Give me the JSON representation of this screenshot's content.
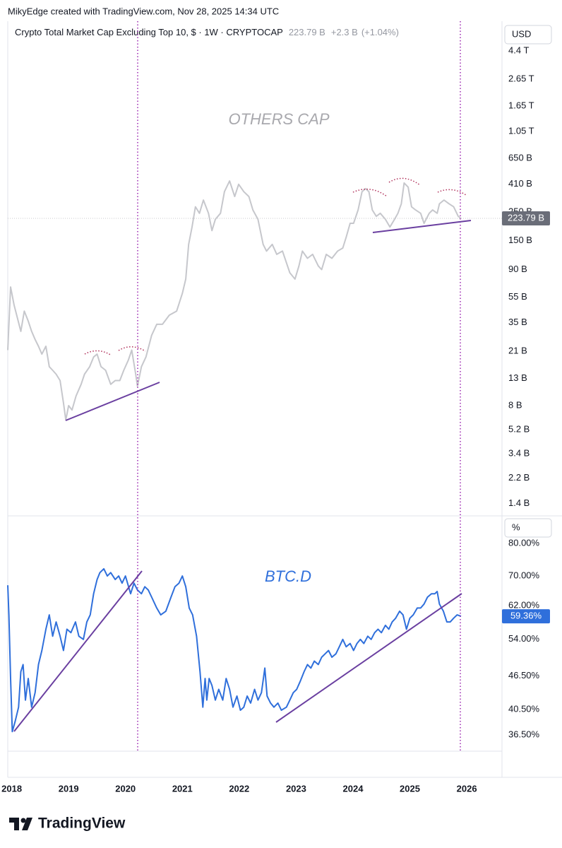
{
  "attribution": "MikyEdge created with TradingView.com, Nov 28, 2025 14:34 UTC",
  "footer_logo": "TradingView",
  "chart_data": [
    {
      "type": "line",
      "title": "Crypto Total Market Cap Excluding Top 10, $ · 1W · CRYPTOCAP",
      "currency": "USD",
      "annotation": "OTHERS CAP",
      "change": "+2.3 B",
      "change_pct": "(+1.04%)",
      "last_price": {
        "value": 223.79,
        "label": "223.79 B"
      },
      "log_scale": true,
      "color": "#c6c7cc",
      "xlim": [
        2017.93,
        2026.62
      ],
      "ylim": [
        1.17,
        7460
      ],
      "yticks": [
        {
          "value": 1.4,
          "label": "1.4 B"
        },
        {
          "value": 2.2,
          "label": "2.2 B"
        },
        {
          "value": 3.4,
          "label": "3.4 B"
        },
        {
          "value": 5.2,
          "label": "5.2 B"
        },
        {
          "value": 8,
          "label": "8 B"
        },
        {
          "value": 13,
          "label": "13 B"
        },
        {
          "value": 21,
          "label": "21 B"
        },
        {
          "value": 35,
          "label": "35 B"
        },
        {
          "value": 55,
          "label": "55 B"
        },
        {
          "value": 90,
          "label": "90 B"
        },
        {
          "value": 150,
          "label": "150 B"
        },
        {
          "value": 250,
          "label": "250 B"
        },
        {
          "value": 410,
          "label": "410 B"
        },
        {
          "value": 650,
          "label": "650 B"
        },
        {
          "value": 1050,
          "label": "1.05 T"
        },
        {
          "value": 1650,
          "label": "1.65 T"
        },
        {
          "value": 2650,
          "label": "2.65 T"
        },
        {
          "value": 4400,
          "label": "4.4 T"
        }
      ],
      "x": [
        2017.93,
        2017.98,
        2018.04,
        2018.1,
        2018.16,
        2018.22,
        2018.29,
        2018.35,
        2018.41,
        2018.47,
        2018.53,
        2018.6,
        2018.66,
        2018.72,
        2018.78,
        2018.85,
        2018.91,
        2018.95,
        2019.0,
        2019.06,
        2019.13,
        2019.22,
        2019.28,
        2019.37,
        2019.44,
        2019.5,
        2019.57,
        2019.65,
        2019.74,
        2019.82,
        2019.9,
        2019.97,
        2020.05,
        2020.11,
        2020.18,
        2020.21,
        2020.28,
        2020.36,
        2020.46,
        2020.55,
        2020.65,
        2020.77,
        2020.9,
        2021.0,
        2021.06,
        2021.11,
        2021.17,
        2021.23,
        2021.3,
        2021.37,
        2021.46,
        2021.52,
        2021.58,
        2021.67,
        2021.74,
        2021.83,
        2021.92,
        2021.99,
        2022.08,
        2022.17,
        2022.24,
        2022.33,
        2022.42,
        2022.48,
        2022.58,
        2022.66,
        2022.76,
        2022.89,
        2022.98,
        2023.05,
        2023.11,
        2023.2,
        2023.29,
        2023.39,
        2023.45,
        2023.53,
        2023.63,
        2023.73,
        2023.82,
        2023.88,
        2023.95,
        2024.01,
        2024.09,
        2024.16,
        2024.22,
        2024.28,
        2024.34,
        2024.41,
        2024.48,
        2024.57,
        2024.65,
        2024.73,
        2024.79,
        2024.85,
        2024.9,
        2024.97,
        2025.03,
        2025.1,
        2025.19,
        2025.25,
        2025.34,
        2025.4,
        2025.48,
        2025.52,
        2025.6,
        2025.69,
        2025.77,
        2025.85,
        2025.9
      ],
      "values": [
        21.5,
        66,
        48,
        38,
        30,
        43,
        36,
        30,
        26,
        23,
        20,
        23,
        16,
        15,
        14,
        12.5,
        8.4,
        6.2,
        8,
        7.4,
        9.5,
        11.7,
        14,
        16,
        19,
        20,
        16,
        15,
        11.7,
        12.5,
        12.5,
        15,
        18,
        21.5,
        14,
        11.3,
        16,
        19,
        28,
        34,
        34,
        40,
        43,
        59,
        76,
        141,
        192,
        275,
        245,
        310,
        245,
        180,
        220,
        245,
        360,
        435,
        330,
        410,
        360,
        330,
        260,
        220,
        141,
        125,
        141,
        118,
        125,
        85,
        76,
        96,
        125,
        110,
        118,
        96,
        90,
        118,
        110,
        125,
        132,
        160,
        205,
        205,
        260,
        360,
        380,
        360,
        260,
        232,
        245,
        220,
        192,
        220,
        245,
        290,
        420,
        390,
        275,
        260,
        245,
        205,
        245,
        260,
        245,
        290,
        310,
        290,
        275,
        232,
        223.79
      ]
    },
    {
      "type": "line",
      "annotation": "BTC.D",
      "unit": "%",
      "last_price": {
        "value": 59.36,
        "label": "59.36%"
      },
      "log_scale": true,
      "color": "#2f6fdb",
      "xlim": [
        2017.93,
        2026.62
      ],
      "ylim": [
        34.15,
        88.8
      ],
      "yticks": [
        {
          "value": 36.5,
          "label": "36.50%"
        },
        {
          "value": 40.5,
          "label": "40.50%"
        },
        {
          "value": 46.5,
          "label": "46.50%"
        },
        {
          "value": 54,
          "label": "54.00%"
        },
        {
          "value": 62,
          "label": "62.00%"
        },
        {
          "value": 70,
          "label": "70.00%"
        },
        {
          "value": 80,
          "label": "80.00%"
        }
      ],
      "xticks": [
        2018,
        2019,
        2020,
        2021,
        2022,
        2023,
        2024,
        2025,
        2026
      ],
      "x": [
        2017.93,
        2017.95,
        2017.98,
        2018.01,
        2018.06,
        2018.12,
        2018.16,
        2018.2,
        2018.24,
        2018.29,
        2018.35,
        2018.41,
        2018.47,
        2018.53,
        2018.6,
        2018.66,
        2018.72,
        2018.78,
        2018.85,
        2018.91,
        2018.97,
        2019.04,
        2019.12,
        2019.18,
        2019.26,
        2019.32,
        2019.38,
        2019.44,
        2019.5,
        2019.55,
        2019.62,
        2019.68,
        2019.74,
        2019.82,
        2019.88,
        2019.94,
        2020.0,
        2020.09,
        2020.15,
        2020.21,
        2020.28,
        2020.34,
        2020.4,
        2020.46,
        2020.55,
        2020.62,
        2020.71,
        2020.8,
        2020.87,
        2020.94,
        2021.0,
        2021.06,
        2021.12,
        2021.18,
        2021.25,
        2021.31,
        2021.36,
        2021.4,
        2021.43,
        2021.47,
        2021.52,
        2021.58,
        2021.64,
        2021.71,
        2021.77,
        2021.83,
        2021.89,
        2021.96,
        2022.02,
        2022.08,
        2022.14,
        2022.2,
        2022.27,
        2022.33,
        2022.39,
        2022.45,
        2022.49,
        2022.55,
        2022.61,
        2022.68,
        2022.74,
        2022.83,
        2022.89,
        2022.95,
        2023.01,
        2023.07,
        2023.14,
        2023.2,
        2023.26,
        2023.32,
        2023.39,
        2023.45,
        2023.51,
        2023.57,
        2023.63,
        2023.7,
        2023.76,
        2023.82,
        2023.88,
        2023.95,
        2024.01,
        2024.07,
        2024.13,
        2024.19,
        2024.26,
        2024.32,
        2024.38,
        2024.44,
        2024.5,
        2024.57,
        2024.63,
        2024.69,
        2024.75,
        2024.82,
        2024.88,
        2024.94,
        2025.0,
        2025.06,
        2025.13,
        2025.19,
        2025.25,
        2025.31,
        2025.38,
        2025.44,
        2025.48,
        2025.52,
        2025.59,
        2025.65,
        2025.71,
        2025.77,
        2025.83,
        2025.9
      ],
      "values": [
        67.4,
        59.7,
        46.0,
        37.0,
        38.6,
        40.9,
        47.3,
        48.7,
        42.1,
        46.0,
        40.9,
        43.4,
        48.7,
        51.6,
        56.3,
        59.7,
        54.7,
        58.0,
        54.7,
        51.6,
        56.3,
        55.5,
        58.0,
        54.7,
        54.0,
        58.0,
        59.7,
        65.1,
        69.0,
        71.0,
        72.1,
        70.0,
        71.0,
        69.0,
        70.0,
        68.0,
        70.0,
        65.1,
        68.0,
        66.1,
        65.1,
        67.0,
        66.1,
        64.2,
        61.4,
        59.7,
        60.6,
        64.2,
        67.0,
        68.0,
        70.0,
        67.0,
        61.4,
        59.7,
        54.7,
        47.3,
        40.9,
        46.0,
        42.1,
        46.0,
        44.7,
        42.1,
        44.0,
        42.1,
        46.0,
        44.0,
        40.9,
        42.8,
        40.4,
        40.9,
        42.8,
        41.6,
        44.0,
        42.1,
        43.4,
        48.0,
        42.8,
        41.6,
        40.9,
        41.6,
        40.4,
        40.9,
        42.1,
        43.4,
        44.0,
        45.4,
        47.3,
        48.7,
        48.0,
        49.4,
        48.7,
        50.2,
        50.9,
        51.6,
        50.2,
        50.9,
        52.4,
        54.0,
        52.4,
        53.1,
        51.6,
        53.1,
        54.0,
        53.1,
        54.7,
        54.0,
        55.5,
        56.3,
        55.5,
        57.2,
        56.3,
        58.0,
        58.9,
        60.6,
        59.7,
        56.3,
        58.9,
        59.7,
        61.4,
        61.4,
        62.4,
        64.2,
        65.1,
        65.1,
        65.7,
        62.4,
        60.6,
        58.0,
        58.0,
        58.9,
        59.7,
        59.36
      ]
    }
  ]
}
